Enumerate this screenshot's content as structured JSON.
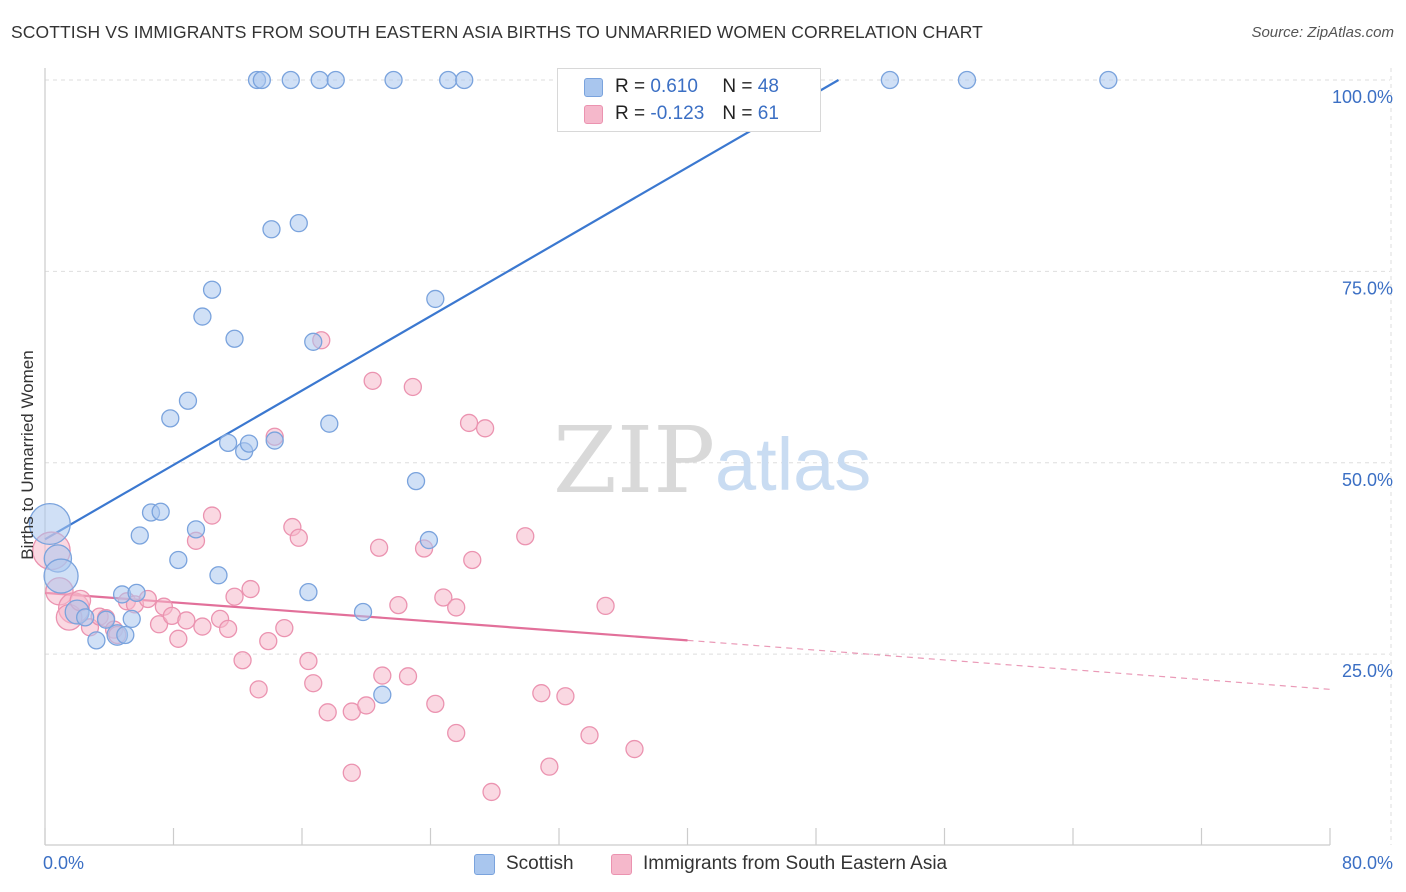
{
  "title": "SCOTTISH VS IMMIGRANTS FROM SOUTH EASTERN ASIA BIRTHS TO UNMARRIED WOMEN CORRELATION CHART",
  "source": "Source: ZipAtlas.com",
  "watermark": {
    "zip": "ZIP",
    "atlas": "atlas"
  },
  "colors": {
    "blue_fill": "#a9c6ee",
    "blue_stroke": "#7aa3dd",
    "blue_line": "#3b78d0",
    "pink_fill": "#f5b8cb",
    "pink_stroke": "#eb93b0",
    "pink_line": "#e2709a",
    "axis_label": "#3b6fc4",
    "grid": "#dedede"
  },
  "legend": {
    "rows": [
      {
        "r_label": "R =",
        "r_value": "0.610",
        "n_label": "N =",
        "n_value": "48",
        "color": "blue"
      },
      {
        "r_label": "R =",
        "r_value": "-0.123",
        "n_label": "N =",
        "n_value": "61",
        "color": "pink"
      }
    ]
  },
  "bottom_legend": [
    {
      "label": "Scottish",
      "color": "blue"
    },
    {
      "label": "Immigrants from South Eastern Asia",
      "color": "pink"
    }
  ],
  "chart_data": {
    "type": "scatter",
    "title": "SCOTTISH VS IMMIGRANTS FROM SOUTH EASTERN ASIA BIRTHS TO UNMARRIED WOMEN CORRELATION CHART",
    "xlabel": "",
    "ylabel": "Births to Unmarried Women",
    "xlim": [
      0,
      80
    ],
    "ylim": [
      0,
      102
    ],
    "x_tick_labels": [
      "0.0%",
      "80.0%"
    ],
    "y_ticks": [
      25,
      50,
      75,
      100
    ],
    "y_tick_labels": [
      "25.0%",
      "50.0%",
      "75.0%",
      "100.0%"
    ],
    "grid": true,
    "legend_position": "top-center",
    "series": [
      {
        "name": "Scottish",
        "color": "blue",
        "r": 0.61,
        "n": 48,
        "trend": {
          "x": [
            0,
            49.4
          ],
          "y": [
            40.0,
            100.0
          ]
        },
        "points": [
          {
            "x": 0.3,
            "y": 42,
            "s": 2.4
          },
          {
            "x": 0.8,
            "y": 37.5,
            "s": 1.6
          },
          {
            "x": 1.0,
            "y": 35.2,
            "s": 2.0
          },
          {
            "x": 2.0,
            "y": 30.5,
            "s": 1.4
          },
          {
            "x": 2.5,
            "y": 29.8,
            "s": 1.0
          },
          {
            "x": 4.5,
            "y": 27.5,
            "s": 1.2
          },
          {
            "x": 3.2,
            "y": 26.8,
            "s": 1.0
          },
          {
            "x": 5.0,
            "y": 27.5,
            "s": 1.0
          },
          {
            "x": 3.8,
            "y": 29.5,
            "s": 1.0
          },
          {
            "x": 5.4,
            "y": 29.6,
            "s": 1.0
          },
          {
            "x": 4.8,
            "y": 32.8,
            "s": 1.0
          },
          {
            "x": 5.7,
            "y": 33.0,
            "s": 1.0
          },
          {
            "x": 5.9,
            "y": 40.5,
            "s": 1.0
          },
          {
            "x": 6.6,
            "y": 43.5,
            "s": 1.0
          },
          {
            "x": 7.2,
            "y": 43.6,
            "s": 1.0
          },
          {
            "x": 8.3,
            "y": 37.3,
            "s": 1.0
          },
          {
            "x": 9.4,
            "y": 41.3,
            "s": 1.0
          },
          {
            "x": 10.8,
            "y": 35.3,
            "s": 1.0
          },
          {
            "x": 7.8,
            "y": 55.8,
            "s": 1.0
          },
          {
            "x": 8.9,
            "y": 58.1,
            "s": 1.0
          },
          {
            "x": 9.8,
            "y": 69.1,
            "s": 1.0
          },
          {
            "x": 10.4,
            "y": 72.6,
            "s": 1.0
          },
          {
            "x": 11.4,
            "y": 52.6,
            "s": 1.0
          },
          {
            "x": 11.8,
            "y": 66.2,
            "s": 1.0
          },
          {
            "x": 12.4,
            "y": 51.5,
            "s": 1.0
          },
          {
            "x": 12.7,
            "y": 52.5,
            "s": 1.0
          },
          {
            "x": 14.3,
            "y": 52.9,
            "s": 1.0
          },
          {
            "x": 14.1,
            "y": 80.5,
            "s": 1.0
          },
          {
            "x": 15.8,
            "y": 81.3,
            "s": 1.0
          },
          {
            "x": 16.7,
            "y": 65.8,
            "s": 1.0
          },
          {
            "x": 17.7,
            "y": 55.1,
            "s": 1.0
          },
          {
            "x": 16.4,
            "y": 33.1,
            "s": 1.0
          },
          {
            "x": 19.8,
            "y": 30.5,
            "s": 1.0
          },
          {
            "x": 21.0,
            "y": 19.7,
            "s": 1.0
          },
          {
            "x": 23.1,
            "y": 47.6,
            "s": 1.0
          },
          {
            "x": 23.9,
            "y": 39.9,
            "s": 1.0
          },
          {
            "x": 24.3,
            "y": 71.4,
            "s": 1.0
          },
          {
            "x": 13.2,
            "y": 100,
            "s": 1.0
          },
          {
            "x": 13.5,
            "y": 100,
            "s": 1.0
          },
          {
            "x": 15.3,
            "y": 100,
            "s": 1.0
          },
          {
            "x": 17.1,
            "y": 100,
            "s": 1.0
          },
          {
            "x": 18.1,
            "y": 100,
            "s": 1.0
          },
          {
            "x": 21.7,
            "y": 100,
            "s": 1.0
          },
          {
            "x": 25.1,
            "y": 100,
            "s": 1.0
          },
          {
            "x": 26.1,
            "y": 100,
            "s": 1.0
          },
          {
            "x": 52.6,
            "y": 100,
            "s": 1.0
          },
          {
            "x": 57.4,
            "y": 100,
            "s": 1.0
          },
          {
            "x": 66.2,
            "y": 100,
            "s": 1.0
          }
        ]
      },
      {
        "name": "Immigrants from South Eastern Asia",
        "color": "pink",
        "r": -0.123,
        "n": 61,
        "trend": {
          "x": [
            0,
            40.0
          ],
          "y": [
            33.0,
            26.8
          ]
        },
        "trend_dashed": {
          "x": [
            40.0,
            80.0
          ],
          "y": [
            26.8,
            20.4
          ]
        },
        "points": [
          {
            "x": 0.4,
            "y": 38.5,
            "s": 2.2
          },
          {
            "x": 0.9,
            "y": 33.2,
            "s": 1.6
          },
          {
            "x": 1.8,
            "y": 31.0,
            "s": 1.8
          },
          {
            "x": 1.5,
            "y": 29.8,
            "s": 1.5
          },
          {
            "x": 2.2,
            "y": 32.0,
            "s": 1.2
          },
          {
            "x": 2.8,
            "y": 28.5,
            "s": 1.0
          },
          {
            "x": 3.4,
            "y": 29.9,
            "s": 1.0
          },
          {
            "x": 3.8,
            "y": 29.7,
            "s": 1.0
          },
          {
            "x": 4.3,
            "y": 28.2,
            "s": 1.0
          },
          {
            "x": 4.5,
            "y": 27.5,
            "s": 1.0
          },
          {
            "x": 5.1,
            "y": 31.9,
            "s": 1.0
          },
          {
            "x": 5.6,
            "y": 31.5,
            "s": 1.0
          },
          {
            "x": 6.4,
            "y": 32.2,
            "s": 1.0
          },
          {
            "x": 7.1,
            "y": 28.9,
            "s": 1.0
          },
          {
            "x": 7.4,
            "y": 31.2,
            "s": 1.0
          },
          {
            "x": 7.9,
            "y": 30.0,
            "s": 1.0
          },
          {
            "x": 8.3,
            "y": 27.0,
            "s": 1.0
          },
          {
            "x": 8.8,
            "y": 29.4,
            "s": 1.0
          },
          {
            "x": 9.4,
            "y": 39.8,
            "s": 1.0
          },
          {
            "x": 9.8,
            "y": 28.6,
            "s": 1.0
          },
          {
            "x": 10.4,
            "y": 43.1,
            "s": 1.0
          },
          {
            "x": 10.9,
            "y": 29.6,
            "s": 1.0
          },
          {
            "x": 11.4,
            "y": 28.3,
            "s": 1.0
          },
          {
            "x": 11.8,
            "y": 32.5,
            "s": 1.0
          },
          {
            "x": 12.3,
            "y": 24.2,
            "s": 1.0
          },
          {
            "x": 12.8,
            "y": 33.5,
            "s": 1.0
          },
          {
            "x": 13.3,
            "y": 20.4,
            "s": 1.0
          },
          {
            "x": 13.9,
            "y": 26.7,
            "s": 1.0
          },
          {
            "x": 14.3,
            "y": 53.4,
            "s": 1.0
          },
          {
            "x": 14.9,
            "y": 28.4,
            "s": 1.0
          },
          {
            "x": 15.4,
            "y": 41.6,
            "s": 1.0
          },
          {
            "x": 15.8,
            "y": 40.2,
            "s": 1.0
          },
          {
            "x": 16.4,
            "y": 24.1,
            "s": 1.0
          },
          {
            "x": 16.7,
            "y": 21.2,
            "s": 1.0
          },
          {
            "x": 17.2,
            "y": 66.0,
            "s": 1.0
          },
          {
            "x": 17.6,
            "y": 17.4,
            "s": 1.0
          },
          {
            "x": 19.1,
            "y": 17.5,
            "s": 1.0
          },
          {
            "x": 19.1,
            "y": 9.5,
            "s": 1.0
          },
          {
            "x": 20.0,
            "y": 18.3,
            "s": 1.0
          },
          {
            "x": 20.4,
            "y": 60.7,
            "s": 1.0
          },
          {
            "x": 20.8,
            "y": 38.9,
            "s": 1.0
          },
          {
            "x": 21.0,
            "y": 22.2,
            "s": 1.0
          },
          {
            "x": 22.0,
            "y": 31.4,
            "s": 1.0
          },
          {
            "x": 22.6,
            "y": 22.1,
            "s": 1.0
          },
          {
            "x": 22.9,
            "y": 59.9,
            "s": 1.0
          },
          {
            "x": 23.6,
            "y": 38.8,
            "s": 1.0
          },
          {
            "x": 24.3,
            "y": 18.5,
            "s": 1.0
          },
          {
            "x": 24.8,
            "y": 32.4,
            "s": 1.0
          },
          {
            "x": 25.6,
            "y": 31.1,
            "s": 1.0
          },
          {
            "x": 25.6,
            "y": 14.7,
            "s": 1.0
          },
          {
            "x": 26.4,
            "y": 55.2,
            "s": 1.0
          },
          {
            "x": 26.6,
            "y": 37.3,
            "s": 1.0
          },
          {
            "x": 27.4,
            "y": 54.5,
            "s": 1.0
          },
          {
            "x": 27.8,
            "y": 7.0,
            "s": 1.0
          },
          {
            "x": 29.9,
            "y": 40.4,
            "s": 1.0
          },
          {
            "x": 30.9,
            "y": 19.9,
            "s": 1.0
          },
          {
            "x": 31.4,
            "y": 10.3,
            "s": 1.0
          },
          {
            "x": 32.4,
            "y": 19.5,
            "s": 1.0
          },
          {
            "x": 33.9,
            "y": 14.4,
            "s": 1.0
          },
          {
            "x": 34.9,
            "y": 31.3,
            "s": 1.0
          },
          {
            "x": 36.7,
            "y": 12.6,
            "s": 1.0
          }
        ]
      }
    ]
  }
}
